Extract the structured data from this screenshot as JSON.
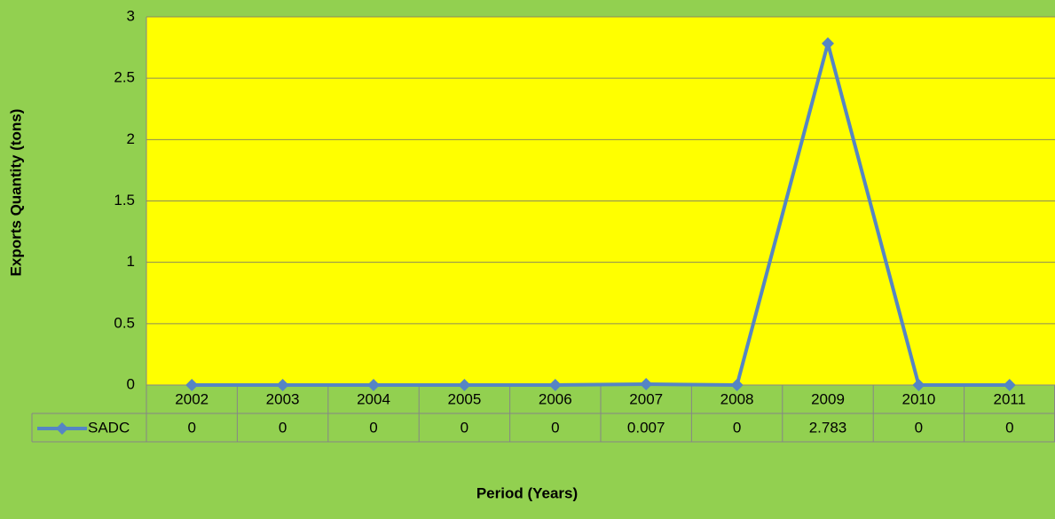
{
  "chart_data": {
    "type": "line",
    "y_label": "Exports Quantity (tons)",
    "x_label": "Period (Years)",
    "categories": [
      "2002",
      "2003",
      "2004",
      "2005",
      "2006",
      "2007",
      "2008",
      "2009",
      "2010",
      "2011"
    ],
    "series": [
      {
        "name": "SADC",
        "color": "#5585c4",
        "values": [
          0,
          0,
          0,
          0,
          0,
          0.007,
          0,
          2.783,
          0,
          0
        ]
      }
    ],
    "ylim": [
      0,
      3
    ],
    "yticks": [
      0,
      0.5,
      1,
      1.5,
      2,
      2.5,
      3
    ],
    "grid": true,
    "data_table": true
  }
}
